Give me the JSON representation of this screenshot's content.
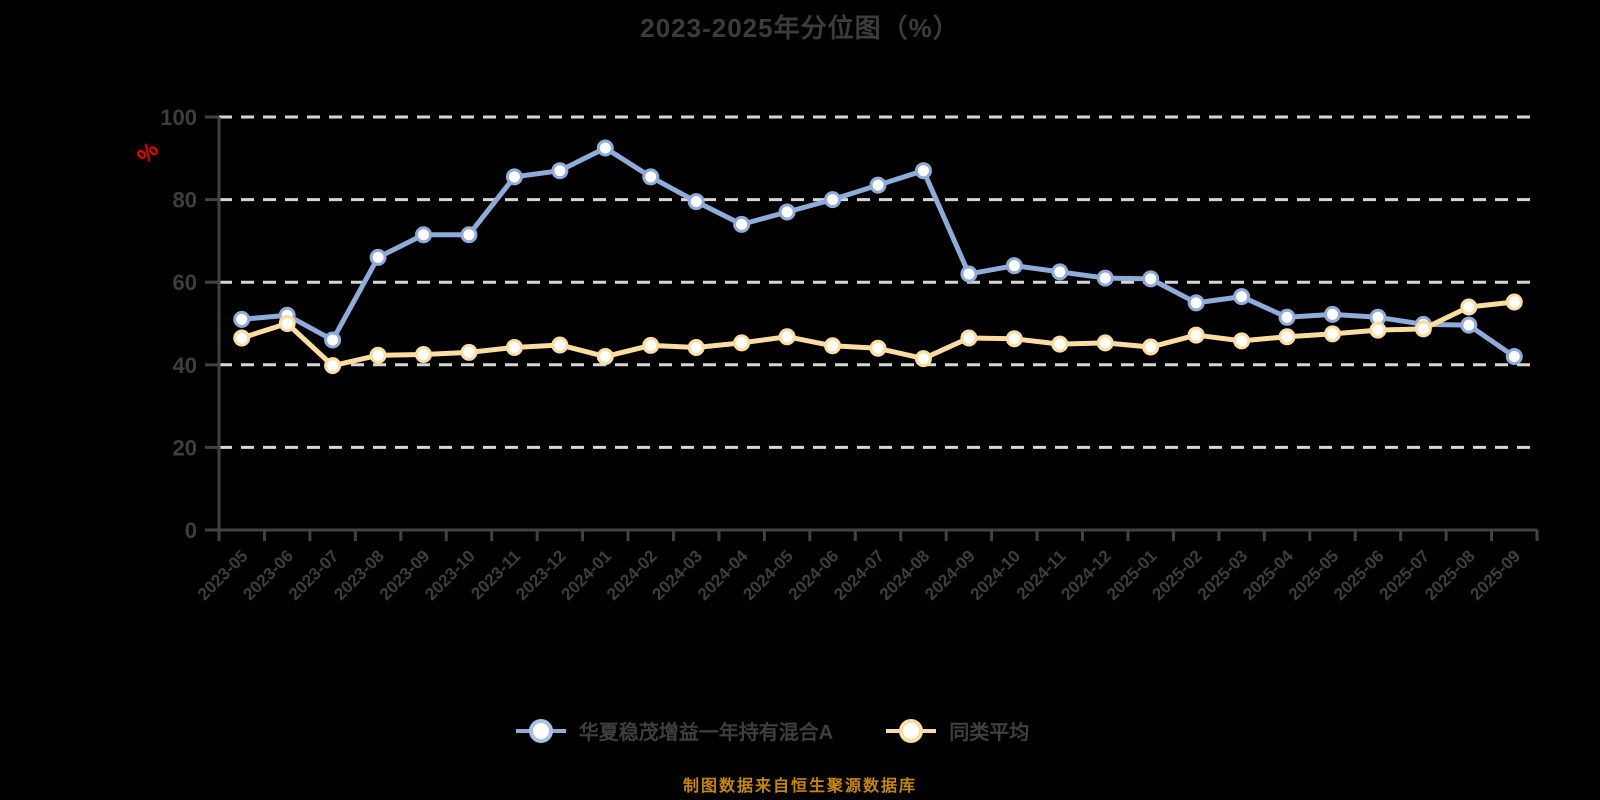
{
  "page": {
    "title": "2023-2025年分位图（%）",
    "source_note": "制图数据来自恒生聚源数据库"
  },
  "colors": {
    "background": "#000000",
    "title_text": "#3c3c3c",
    "axis_line": "#424242",
    "axis_label": "#3e3e3e",
    "gridline": "#d6d6d6",
    "unit_label": "#ee0000",
    "legend_text": "#3e3e3e",
    "source_note": "#c5860e",
    "marker_fill": "#ffffff"
  },
  "chart_data": {
    "type": "line",
    "title": "2023-2025年分位图（%）",
    "xlabel": "",
    "ylabel": "%",
    "y_unit_label": "%",
    "ylim": [
      0,
      100
    ],
    "yticks": [
      0,
      20,
      40,
      60,
      80,
      100
    ],
    "grid": "horizontal-dashed",
    "legend_position": "bottom",
    "x_tick_label_rotation": -45,
    "categories": [
      "2023-05",
      "2023-06",
      "2023-07",
      "2023-08",
      "2023-09",
      "2023-10",
      "2023-11",
      "2023-12",
      "2024-01",
      "2024-02",
      "2024-03",
      "2024-04",
      "2024-05",
      "2024-06",
      "2024-07",
      "2024-08",
      "2024-09",
      "2024-10",
      "2024-11",
      "2024-12",
      "2025-01",
      "2025-02",
      "2025-03",
      "2025-04",
      "2025-05",
      "2025-06",
      "2025-07",
      "2025-08",
      "2025-09"
    ],
    "series": [
      {
        "name": "华夏稳茂增益一年持有混合A",
        "color": "#8faccf",
        "line_color": "#8fabd9",
        "legend_ring_color": "#a9c1e4",
        "values": [
          51,
          52,
          46,
          66,
          71.5,
          71.5,
          85.5,
          87,
          92.5,
          85.5,
          79.5,
          74,
          77,
          80,
          83.5,
          87,
          62,
          64,
          62.5,
          61,
          60.8,
          55,
          56.5,
          51.5,
          52.2,
          51.5,
          49.8,
          49.6,
          42
        ]
      },
      {
        "name": "同类平均",
        "color": "#fbdda1",
        "line_color": "#fbdda1",
        "legend_ring_color": "#fbdca4",
        "values": [
          46.5,
          50,
          39.8,
          42.3,
          42.5,
          43,
          44.2,
          44.8,
          42,
          44.7,
          44.2,
          45.3,
          46.8,
          44.6,
          44,
          41.5,
          46.5,
          46.3,
          45,
          45.3,
          44.3,
          47.2,
          45.8,
          46.8,
          47.5,
          48.4,
          48.7,
          54,
          55.2
        ]
      }
    ]
  }
}
